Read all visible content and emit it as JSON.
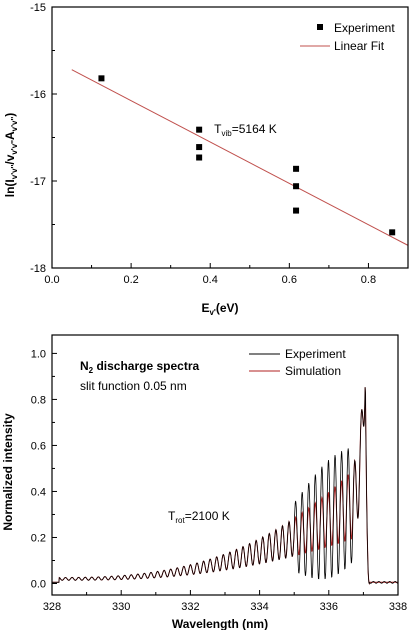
{
  "chart_data": [
    {
      "type": "scatter",
      "xlabel_main": "E",
      "xlabel_sub": "v'",
      "xlabel_tail": "(eV)",
      "ylabel": "ln(I",
      "ylabel_sub1": "v'v''",
      "ylabel_mid1": "/v",
      "ylabel_sub2": "v'v''",
      "ylabel_mid2": "A",
      "ylabel_sub3": "v'v''",
      "ylabel_tail": ")",
      "xlim": [
        0.0,
        0.9
      ],
      "ylim": [
        -18,
        -15
      ],
      "x_ticks": [
        "0.0",
        "0.2",
        "0.4",
        "0.6",
        "0.8"
      ],
      "x_tick_values": [
        0.0,
        0.2,
        0.4,
        0.6,
        0.8
      ],
      "y_ticks": [
        "-18",
        "-17",
        "-16",
        "-15"
      ],
      "y_tick_values": [
        -18,
        -17,
        -16,
        -15
      ],
      "legend_position": "top-right",
      "series": [
        {
          "name": "Experiment",
          "kind": "points",
          "color": "#000000",
          "x": [
            0.125,
            0.372,
            0.372,
            0.372,
            0.617,
            0.617,
            0.617,
            0.86
          ],
          "y": [
            -15.82,
            -16.41,
            -16.61,
            -16.73,
            -16.86,
            -17.06,
            -17.34,
            -17.59
          ]
        },
        {
          "name": "Linear Fit",
          "kind": "line",
          "color": "#c0504d",
          "x": [
            0.05,
            0.9
          ],
          "y": [
            -15.72,
            -17.74
          ]
        }
      ],
      "annotation": {
        "text_main": "T",
        "text_sub": "vib",
        "text_tail": "=5164 K",
        "x": 0.41,
        "y": -16.45
      }
    },
    {
      "type": "line",
      "xlabel": "Wavelength (nm)",
      "ylabel": "Normalized intensity",
      "xlim": [
        328,
        338
      ],
      "ylim": [
        -0.05,
        1.08
      ],
      "x_ticks": [
        "328",
        "330",
        "332",
        "334",
        "336",
        "338"
      ],
      "x_tick_values": [
        328,
        330,
        332,
        334,
        336,
        338
      ],
      "y_ticks": [
        "0.0",
        "0.2",
        "0.4",
        "0.6",
        "0.8",
        "1.0"
      ],
      "y_tick_values": [
        0.0,
        0.2,
        0.4,
        0.6,
        0.8,
        1.0
      ],
      "legend_position": "top-right",
      "series": [
        {
          "name": "Experiment",
          "color": "#000000"
        },
        {
          "name": "Simulation",
          "color": "#b22222"
        }
      ],
      "spectrum_model": {
        "start": 328.2,
        "band_head": 337.05,
        "peak": 1.0,
        "oscillation_period_nm": 0.19,
        "envelope_base": 0.02,
        "envelope_rise_power": 2.6,
        "envelope_at_head": 0.38
      },
      "annotations": [
        {
          "key": "title",
          "text_main": "N",
          "text_sub": "2",
          "text_tail": " discharge spectra"
        },
        {
          "key": "slit",
          "text": "slit function 0.05 nm"
        },
        {
          "key": "trot",
          "text_main": "T",
          "text_sub": "rot",
          "text_tail": "=2100 K"
        }
      ]
    }
  ]
}
